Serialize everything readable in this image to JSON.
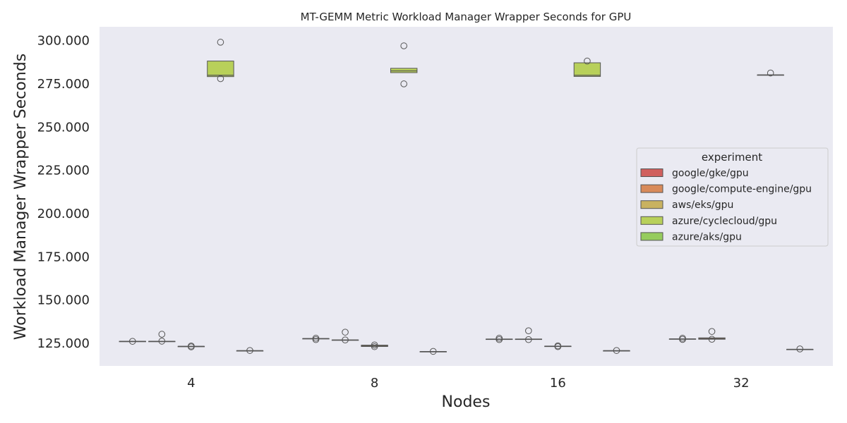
{
  "chart_data": {
    "type": "box",
    "title": "MT-GEMM Metric Workload Manager Wrapper Seconds for GPU",
    "xlabel": "Nodes",
    "ylabel": "Workload Manager Wrapper Seconds",
    "categories": [
      "4",
      "8",
      "16",
      "32"
    ],
    "ylim": [
      112,
      308
    ],
    "yticks": [
      125,
      150,
      175,
      200,
      225,
      250,
      275,
      300
    ],
    "ytick_labels": [
      "125.000",
      "150.000",
      "175.000",
      "200.000",
      "225.000",
      "250.000",
      "275.000",
      "300.000"
    ],
    "grid": false,
    "legend": {
      "title": "experiment",
      "placement": "center-right"
    },
    "series": [
      {
        "name": "google/gke/gpu",
        "color": "#d0605e",
        "boxes": [
          {
            "q1": 126.2,
            "median": 126.2,
            "q3": 126.2,
            "whisker_low": 126.2,
            "whisker_high": 126.2,
            "outliers": [
              126.2
            ]
          },
          {
            "q1": 127.8,
            "median": 127.8,
            "q3": 127.8,
            "whisker_low": 127.8,
            "whisker_high": 127.8,
            "outliers": [
              128.0,
              127.2
            ]
          },
          {
            "q1": 127.5,
            "median": 127.5,
            "q3": 127.5,
            "whisker_low": 127.5,
            "whisker_high": 127.5,
            "outliers": [
              128.0,
              127.2
            ]
          },
          {
            "q1": 127.6,
            "median": 127.6,
            "q3": 127.6,
            "whisker_low": 127.6,
            "whisker_high": 127.6,
            "outliers": [
              128.0,
              127.3
            ]
          }
        ]
      },
      {
        "name": "google/compute-engine/gpu",
        "color": "#d88a5a",
        "boxes": [
          {
            "q1": 126.2,
            "median": 126.2,
            "q3": 126.2,
            "whisker_low": 126.2,
            "whisker_high": 126.2,
            "outliers": [
              130.3,
              126.3
            ]
          },
          {
            "q1": 127.0,
            "median": 127.0,
            "q3": 127.0,
            "whisker_low": 127.0,
            "whisker_high": 127.0,
            "outliers": [
              131.5,
              127.0
            ]
          },
          {
            "q1": 127.5,
            "median": 127.5,
            "q3": 127.5,
            "whisker_low": 127.5,
            "whisker_high": 127.5,
            "outliers": [
              132.3,
              127.2
            ]
          },
          {
            "q1": 127.4,
            "median": 127.8,
            "q3": 128.2,
            "whisker_low": 127.4,
            "whisker_high": 128.2,
            "outliers": [
              131.9,
              127.4
            ]
          }
        ]
      },
      {
        "name": "aws/eks/gpu",
        "color": "#c9b260",
        "boxes": [
          {
            "q1": 123.3,
            "median": 123.3,
            "q3": 123.3,
            "whisker_low": 123.3,
            "whisker_high": 123.3,
            "outliers": [
              123.5,
              123.0
            ]
          },
          {
            "q1": 123.2,
            "median": 123.7,
            "q3": 124.0,
            "whisker_low": 123.2,
            "whisker_high": 124.0,
            "outliers": [
              124.1,
              123.1
            ]
          },
          {
            "q1": 123.4,
            "median": 123.4,
            "q3": 123.4,
            "whisker_low": 123.4,
            "whisker_high": 123.4,
            "outliers": [
              123.6,
              123.1
            ]
          }
        ]
      },
      {
        "name": "azure/cyclecloud/gpu",
        "color": "#b8d05a",
        "boxes": [
          {
            "q1": 279.2,
            "median": 280.0,
            "q3": 288.2,
            "whisker_low": 279.2,
            "whisker_high": 288.2,
            "outliers": [
              299.1,
              278.0
            ]
          },
          {
            "q1": 281.5,
            "median": 282.5,
            "q3": 284.0,
            "whisker_low": 281.5,
            "whisker_high": 284.0,
            "outliers": [
              297.0,
              275.0
            ]
          },
          {
            "q1": 279.3,
            "median": 280.0,
            "q3": 287.2,
            "whisker_low": 279.3,
            "whisker_high": 287.2,
            "outliers": [
              288.2
            ]
          },
          {
            "q1": 280.2,
            "median": 280.2,
            "q3": 280.2,
            "whisker_low": 280.2,
            "whisker_high": 280.2,
            "outliers": [
              281.3
            ]
          }
        ]
      },
      {
        "name": "azure/aks/gpu",
        "color": "#96cc5e",
        "boxes": [
          {
            "q1": 120.8,
            "median": 120.8,
            "q3": 120.8,
            "whisker_low": 120.8,
            "whisker_high": 120.8,
            "outliers": [
              120.9
            ]
          },
          {
            "q1": 120.3,
            "median": 120.3,
            "q3": 120.3,
            "whisker_low": 120.3,
            "whisker_high": 120.3,
            "outliers": [
              120.4
            ]
          },
          {
            "q1": 120.8,
            "median": 120.8,
            "q3": 120.8,
            "whisker_low": 120.8,
            "whisker_high": 120.8,
            "outliers": [
              120.9
            ]
          },
          {
            "q1": 121.6,
            "median": 121.6,
            "q3": 121.6,
            "whisker_low": 121.6,
            "whisker_high": 121.6,
            "outliers": [
              121.8
            ]
          }
        ]
      }
    ]
  }
}
